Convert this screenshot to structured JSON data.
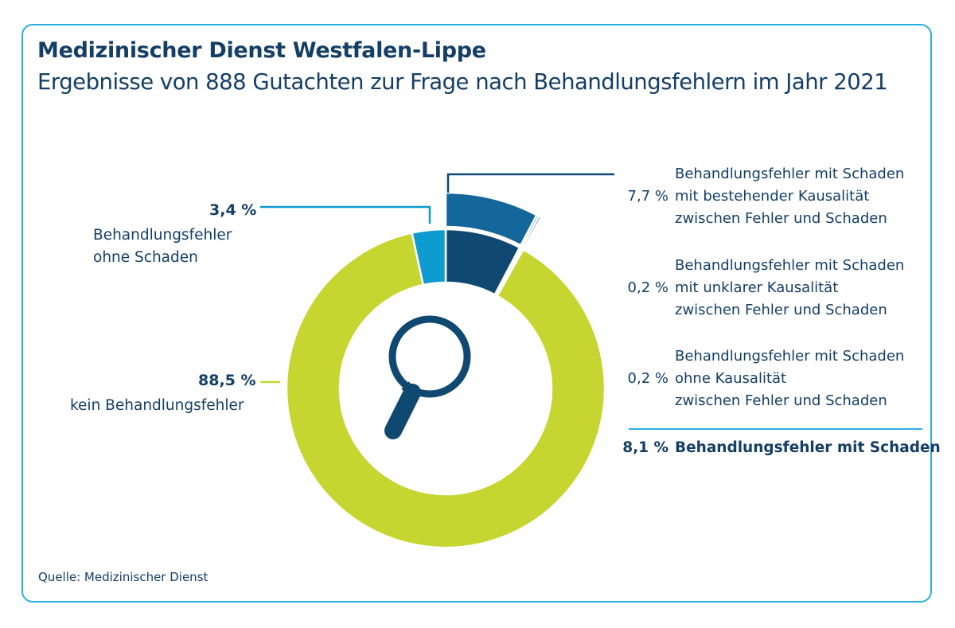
{
  "header": {
    "title": "Medizinischer Dienst Westfalen-Lippe",
    "subtitle": "Ergebnisse von 888 Gutachten zur Frage nach Behandlungsfehlern im Jahr 2021"
  },
  "source": "Quelle: Medizinischer Dienst",
  "colors": {
    "green": "#c6d530",
    "light_blue": "#0d9bd0",
    "dark_blue": "#0f4870",
    "mid_blue": "#14679a",
    "text": "#143e66",
    "frame": "#2aaee0"
  },
  "icon": "magnifier-icon",
  "chart_data": {
    "type": "pie",
    "variant": "donut",
    "title": "Ergebnisse von 888 Gutachten zur Frage nach Behandlungsfehlern im Jahr 2021",
    "unit": "%",
    "slices": [
      {
        "id": "kausal",
        "label_lines": [
          "Behandlungsfehler mit Schaden",
          "mit bestehender Kausalität",
          "zwischen Fehler und Schaden"
        ],
        "value": 7.7,
        "value_label": "7,7 %"
      },
      {
        "id": "unklar",
        "label_lines": [
          "Behandlungsfehler mit Schaden",
          "mit unklarer Kausalität",
          "zwischen Fehler und Schaden"
        ],
        "value": 0.2,
        "value_label": "0,2 %"
      },
      {
        "id": "ohne_kausal",
        "label_lines": [
          "Behandlungsfehler mit Schaden",
          "ohne Kausalität",
          "zwischen Fehler und Schaden"
        ],
        "value": 0.2,
        "value_label": "0,2 %"
      },
      {
        "id": "kein",
        "label_lines": [
          "kein Behandlungsfehler"
        ],
        "value": 88.5,
        "value_label": "88,5 %"
      },
      {
        "id": "ohne_schaden",
        "label_lines": [
          "Behandlungsfehler",
          "ohne Schaden"
        ],
        "value": 3.4,
        "value_label": "3,4 %"
      }
    ],
    "summary": {
      "value": 8.1,
      "value_label": "8,1 %",
      "label": "Behandlungsfehler mit Schaden"
    }
  }
}
